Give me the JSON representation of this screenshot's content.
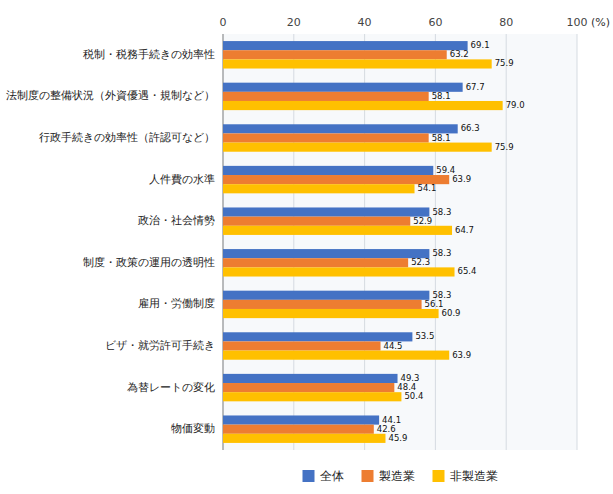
{
  "chart_data": {
    "type": "bar",
    "orientation": "horizontal",
    "x_label": "(%)",
    "categories": [
      "税制・税務手続きの効率性",
      "法制度の整備状況（外資優遇・規制など）",
      "行政手続きの効率性（許認可など）",
      "人件費の水準",
      "政治・社会情勢",
      "制度・政策の運用の透明性",
      "雇用・労働制度",
      "ビザ・就労許可手続き",
      "為替レートの変化",
      "物価変動"
    ],
    "series": [
      {
        "name": "全体",
        "color": "#4472C4",
        "values": [
          69.1,
          67.7,
          66.3,
          59.4,
          58.3,
          58.3,
          58.3,
          53.5,
          49.3,
          44.1
        ]
      },
      {
        "name": "製造業",
        "color": "#ED7D31",
        "values": [
          63.2,
          58.1,
          58.1,
          63.9,
          52.9,
          52.3,
          56.1,
          44.5,
          48.4,
          42.6
        ]
      },
      {
        "name": "非製造業",
        "color": "#FFC000",
        "values": [
          75.9,
          79.0,
          75.9,
          54.1,
          64.7,
          65.4,
          60.9,
          63.9,
          50.4,
          45.9
        ],
        "value_labels": [
          "75.9",
          "79.0",
          "75.9",
          "54.1",
          "64.7",
          "65.4",
          "60.9",
          "63.9",
          "50.4",
          "45.9"
        ]
      }
    ],
    "xlim": [
      0,
      100
    ],
    "xticks": [
      0,
      20,
      40,
      60,
      80,
      100
    ],
    "grid": true,
    "data_labels": true,
    "legend": "bottom"
  }
}
